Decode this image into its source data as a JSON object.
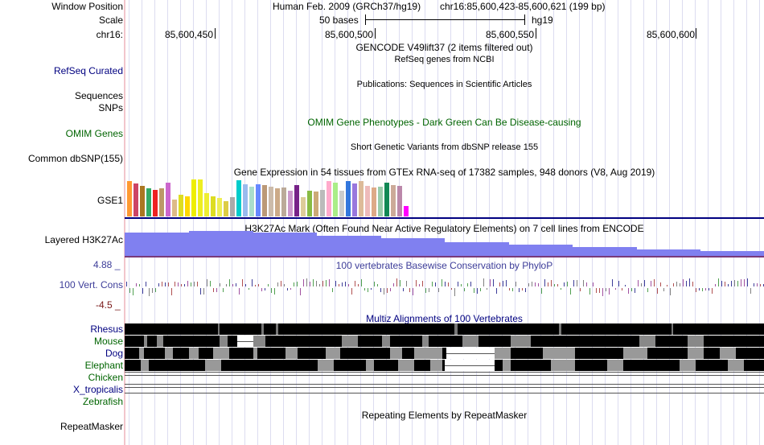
{
  "header": {
    "window_position_label": "Window Position",
    "assembly": "Human Feb. 2009 (GRCh37/hg19)",
    "position": "chr16:85,600,423-85,600,621 (199 bp)",
    "scale_label": "Scale",
    "scale_text": "50 bases",
    "scale_db": "hg19",
    "chrom_label": "chr16:",
    "ticks": [
      "85,600,450",
      "85,600,500",
      "85,600,550",
      "85,600,600"
    ]
  },
  "tracks": {
    "gencode": {
      "title": "GENCODE V49lift37 (2 items filtered out)"
    },
    "refseq": {
      "label": "RefSeq Curated",
      "title": "RefSeq genes from NCBI",
      "color": "#000080"
    },
    "publications": {
      "title": "Publications: Sequences in Scientific Articles"
    },
    "sequences": {
      "label": "Sequences"
    },
    "snps": {
      "label": "SNPs"
    },
    "omim": {
      "label": "OMIM Genes",
      "title": "OMIM Gene Phenotypes - Dark Green Can Be Disease-causing",
      "color": "#006400"
    },
    "dbsnp": {
      "label": "Common dbSNP(155)",
      "title": "Short Genetic Variants from dbSNP release 155"
    },
    "gtex": {
      "label": "GSE1",
      "title": "Gene Expression in 54 tissues from GTEx RNA-seq of 17382 samples, 948 donors (V8, Aug 2019)",
      "bar_colors": [
        "#ff9933",
        "#cc4466",
        "#aa7722",
        "#33aa66",
        "#ee2222",
        "#bb9966",
        "#cc66cc",
        "#ddbb88",
        "#dddd22",
        "#ffd700",
        "#eeee00",
        "#eeee22",
        "#eeee33",
        "#dddd22",
        "#eeee55",
        "#ddcc44",
        "#aaaaaa",
        "#00cccc",
        "#99bbee",
        "#aaddcc",
        "#6688ff",
        "#bb9977",
        "#ccbbaa",
        "#ccaa88",
        "#bbaa99",
        "#cc99cc",
        "#772288",
        "#ddcc99",
        "#88bb44",
        "#ccaa77",
        "#bbbbbb",
        "#ffaacc",
        "#aaee88",
        "#cccccc",
        "#3377dd",
        "#9977dd",
        "#ddbb99",
        "#eebbbb",
        "#ddaa88",
        "#99ccaa",
        "#118855",
        "#ccaa99",
        "#bb88aa",
        "#ff00ff"
      ],
      "values": [
        0.95,
        0.9,
        0.82,
        0.75,
        0.72,
        0.75,
        0.92,
        0.45,
        0.58,
        0.55,
        1.0,
        1.0,
        0.62,
        0.55,
        0.5,
        0.42,
        0.52,
        0.98,
        0.88,
        0.8,
        0.88,
        0.85,
        0.8,
        0.75,
        0.78,
        0.7,
        0.85,
        0.52,
        0.7,
        0.68,
        0.72,
        0.95,
        0.92,
        0.7,
        0.95,
        0.9,
        0.95,
        0.82,
        0.78,
        0.8,
        0.92,
        0.85,
        0.82,
        0.28
      ]
    },
    "h3k27ac": {
      "label": "Layered H3K27Ac",
      "title": "H3K27Ac Mark (Often Found Near Active Regulatory Elements) on 7 cell lines from ENCODE",
      "color": "#8080f0",
      "values": [
        0.95,
        1.0,
        0.92,
        0.82,
        0.72,
        0.55,
        0.45,
        0.35,
        0.25,
        0.2
      ],
      "ymax": 1.0
    },
    "phylop": {
      "label": "100 Vert. Cons",
      "title": "100 vertebrates Basewise Conservation by PhyloP",
      "ymax_label": "4.88 _",
      "ymin_label": "-4.5 _",
      "ylim": [
        -4.5,
        4.88
      ],
      "color": "#3d3d99"
    },
    "multiz": {
      "title": "Multiz Alignments of 100 Vertebrates",
      "species": [
        {
          "name": "Rhesus",
          "color": "#000080"
        },
        {
          "name": "Mouse",
          "color": "#006400"
        },
        {
          "name": "Dog",
          "color": "#000080"
        },
        {
          "name": "Elephant",
          "color": "#006400"
        },
        {
          "name": "Chicken",
          "color": "#006400"
        },
        {
          "name": "X_tropicalis",
          "color": "#000080"
        },
        {
          "name": "Zebrafish",
          "color": "#006400"
        }
      ]
    },
    "repeatmasker": {
      "label": "RepeatMasker",
      "title": "Repeating Elements by RepeatMasker"
    }
  }
}
